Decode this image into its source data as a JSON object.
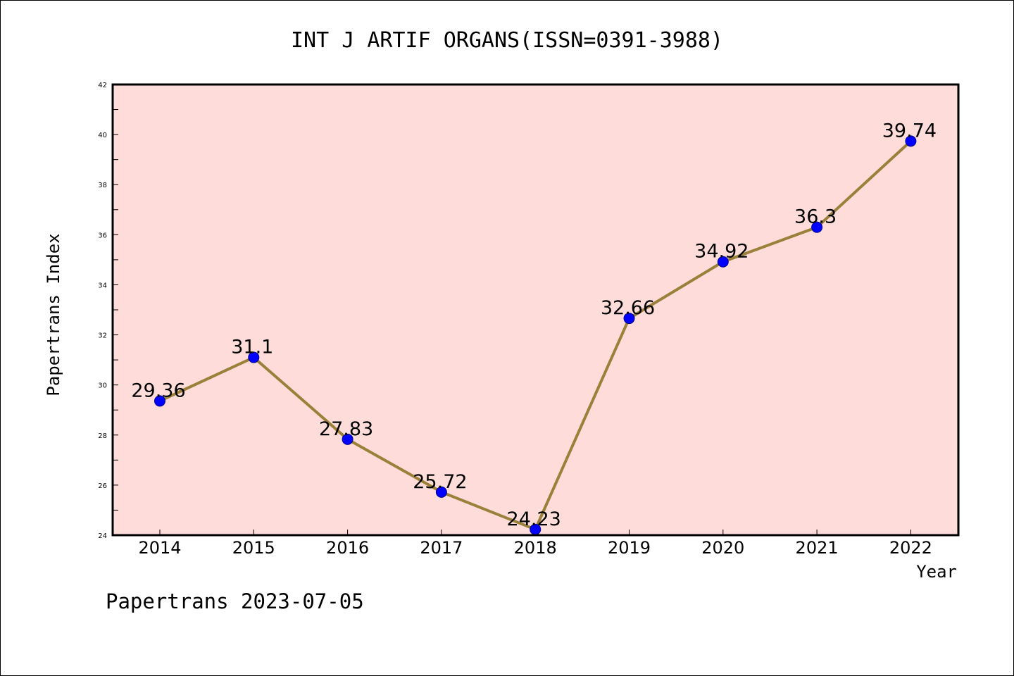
{
  "chart_data": {
    "type": "line",
    "title": "INT J ARTIF ORGANS(ISSN=0391-3988)",
    "xlabel": "Year",
    "ylabel": "Papertrans Index",
    "categories": [
      "2014",
      "2015",
      "2016",
      "2017",
      "2018",
      "2019",
      "2020",
      "2021",
      "2022"
    ],
    "series": [
      {
        "values": [
          29.36,
          31.1,
          27.83,
          25.72,
          24.23,
          32.66,
          34.92,
          36.3,
          39.74
        ]
      }
    ],
    "data_labels": [
      "29.36",
      "31.1",
      "27.83",
      "25.72",
      "24.23",
      "32.66",
      "34.92",
      "36.3",
      "39.74"
    ],
    "ylim": [
      24,
      42
    ],
    "y_ticks": [
      "24",
      "26",
      "28",
      "30",
      "32",
      "34",
      "36",
      "38",
      "40",
      "42"
    ],
    "y_minor_step": 1,
    "grid": false,
    "legend": "none",
    "colors": {
      "plot_background": "#fddcda",
      "line": "#9a8038",
      "marker": "#0000ff",
      "marker_edge": "#00008b",
      "axis": "#000000"
    }
  },
  "footer": {
    "text": "Papertrans 2023-07-05"
  }
}
